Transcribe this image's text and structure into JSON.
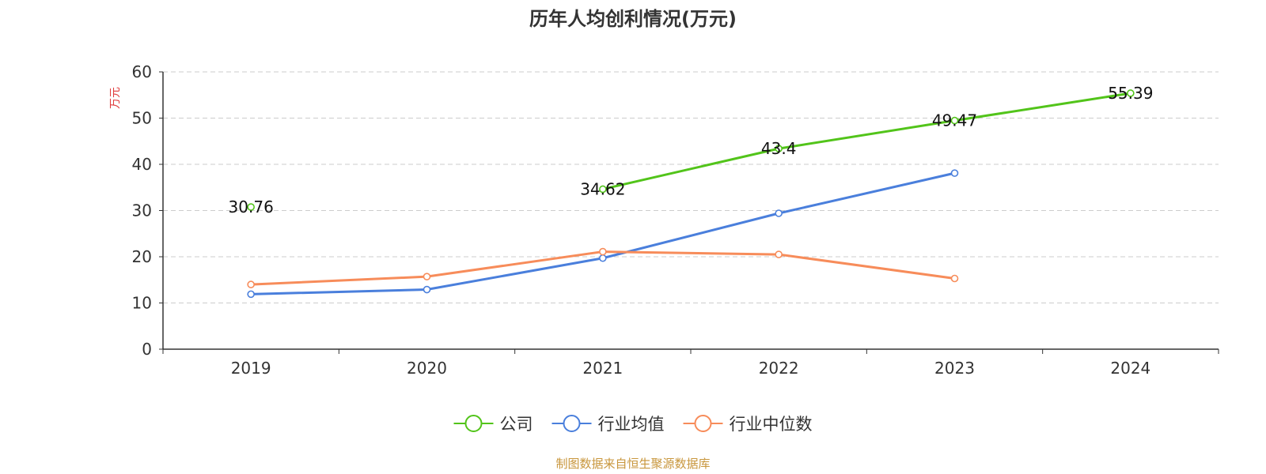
{
  "chart_data": {
    "type": "line",
    "title": "历年人均创利情况(万元)",
    "ylabel": "万元",
    "xlabel": "",
    "categories": [
      "2019",
      "2020",
      "2021",
      "2022",
      "2023",
      "2024"
    ],
    "ylim": [
      0,
      60
    ],
    "yticks": [
      0,
      10,
      20,
      30,
      40,
      50,
      60
    ],
    "grid": true,
    "legend_position": "bottom-center",
    "series": [
      {
        "name": "公司",
        "color": "#52c41a",
        "values": [
          30.76,
          null,
          34.62,
          43.4,
          49.47,
          55.39
        ],
        "labels": [
          "30.76",
          "",
          "34.62",
          "43.4",
          "49.47",
          "55.39"
        ]
      },
      {
        "name": "行业均值",
        "color": "#4a7fdc",
        "values": [
          11.9,
          12.9,
          19.7,
          29.4,
          38.1,
          null
        ]
      },
      {
        "name": "行业中位数",
        "color": "#f78c5a",
        "values": [
          14.0,
          15.7,
          21.1,
          20.5,
          15.3,
          null
        ]
      }
    ],
    "source": "制图数据来自恒生聚源数据库",
    "colors": {
      "ylabel": "#e03c3c",
      "source": "#c8963c",
      "axis": "#333333",
      "grid": "#cccccc"
    }
  }
}
